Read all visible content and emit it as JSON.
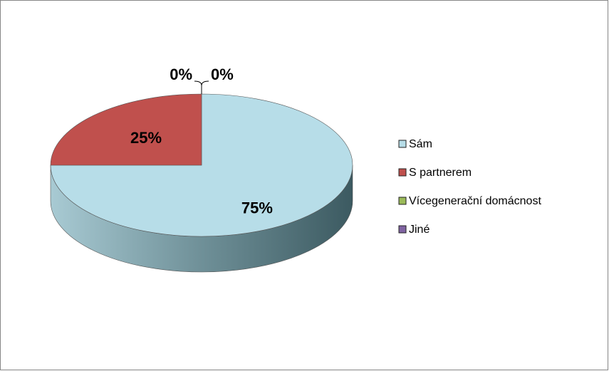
{
  "chart_data": {
    "type": "pie",
    "categories": [
      "Sám",
      "S partnerem",
      "Vícegenerační domácnost",
      "Jiné"
    ],
    "values": [
      75,
      25,
      0,
      0
    ],
    "value_labels": [
      "75%",
      "25%",
      "0%",
      "0%"
    ],
    "colors": [
      "#b7dde8",
      "#c0504d",
      "#9bbb59",
      "#8064a2"
    ],
    "legend": "right"
  }
}
